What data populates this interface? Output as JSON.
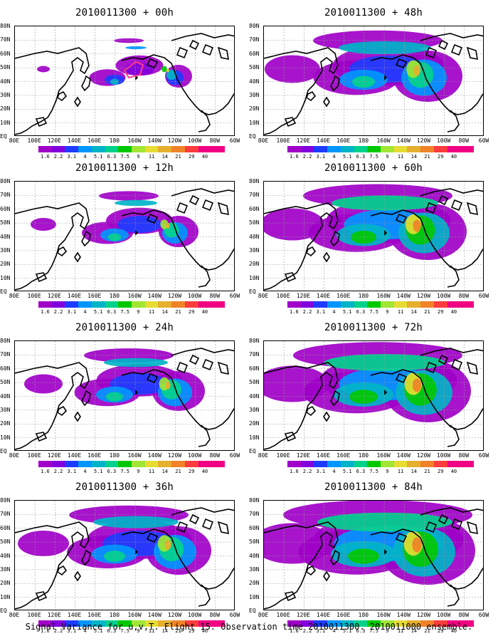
{
  "colors": {
    "levels": [
      "#a000c8",
      "#8200dc",
      "#1e3cff",
      "#0096ff",
      "#00b4c8",
      "#00d28c",
      "#00c800",
      "#a0e632",
      "#e6dc32",
      "#e6af2d",
      "#f08228",
      "#fa3c3c",
      "#f00082"
    ],
    "coast": "#000000",
    "grid": "#9a9a9a",
    "box": "#ff3c8c"
  },
  "panels": [
    {
      "id": "p00",
      "title": "2010011300 + 00h",
      "intensity": 0.15
    },
    {
      "id": "p12",
      "title": "2010011300 + 12h",
      "intensity": 0.3
    },
    {
      "id": "p24",
      "title": "2010011300 + 24h",
      "intensity": 0.45
    },
    {
      "id": "p36",
      "title": "2010011300 + 36h",
      "intensity": 0.6
    },
    {
      "id": "p48",
      "title": "2010011300 + 48h",
      "intensity": 0.65
    },
    {
      "id": "p60",
      "title": "2010011300 + 60h",
      "intensity": 0.75
    },
    {
      "id": "p72",
      "title": "2010011300 + 72h",
      "intensity": 0.85
    },
    {
      "id": "p84",
      "title": "2010011300 + 84h",
      "intensity": 0.95
    }
  ],
  "lat_labels": [
    "80N",
    "70N",
    "60N",
    "50N",
    "40N",
    "30N",
    "20N",
    "10N",
    "EQ"
  ],
  "lon_labels": [
    "80E",
    "100E",
    "120E",
    "140E",
    "160E",
    "180",
    "160W",
    "140W",
    "120W",
    "100W",
    "80W",
    "60W"
  ],
  "colorbar_labels": [
    "1.6",
    "2.2",
    "3.1",
    "4",
    "5.1",
    "6.3",
    "7.5",
    "9",
    "11",
    "14",
    "21",
    "29",
    "40"
  ],
  "caption": "Signal Variance for u,v,T. Flight 15. Observation time 2010011300. 2010011000 ensemble."
}
